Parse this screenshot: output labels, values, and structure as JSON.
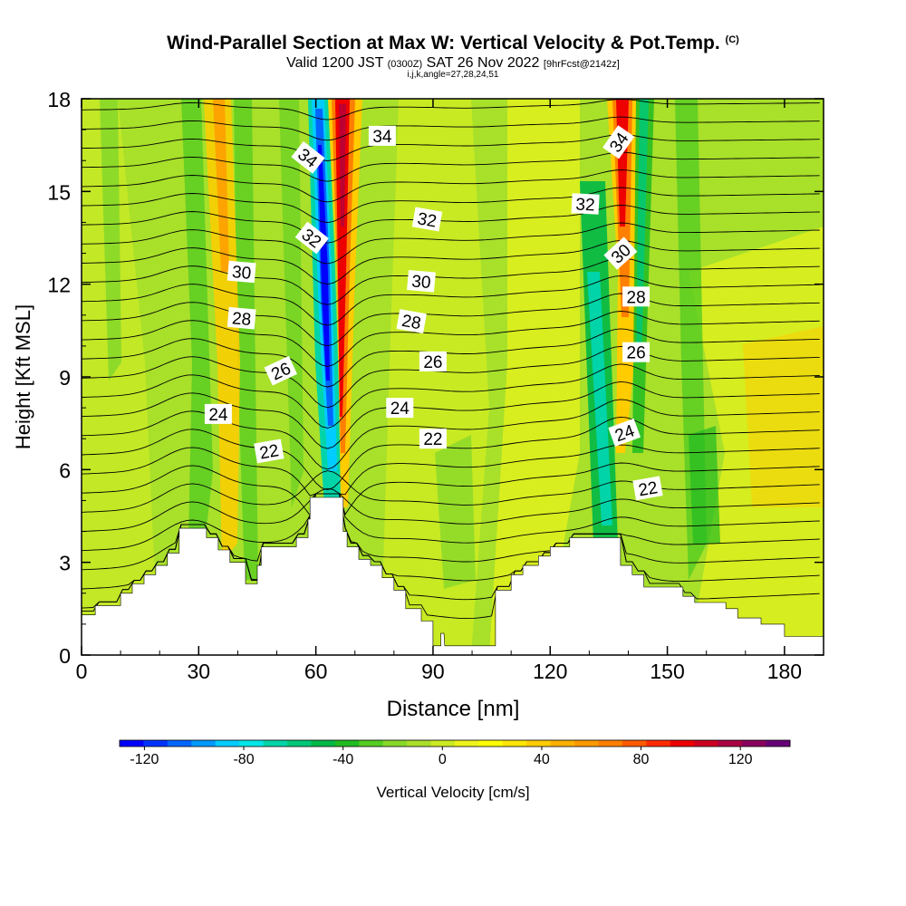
{
  "header": {
    "title_main": "Wind-Parallel Section at Max W: Vertical Velocity & Pot.Temp.",
    "title_mark": "(C)",
    "valid_prefix": "Valid 1200 JST",
    "valid_zulu": "(0300Z)",
    "valid_date": "SAT 26 Nov 2022",
    "fcst_info": "[9hrFcst@2142z]",
    "ijk_line": "i,j,k,angle=27,28,24,51"
  },
  "colors": {
    "contour_line": "#000000",
    "terrain_fill": "#ffffff",
    "background_field": "#a8e02a"
  },
  "chart_data": {
    "type": "heatmap",
    "xlabel": "Distance [nm]",
    "ylabel": "Height [Kft MSL]",
    "xlim": [
      0,
      190
    ],
    "ylim": [
      0,
      18
    ],
    "x_ticks": [
      "0",
      "30",
      "60",
      "90",
      "120",
      "150",
      "180"
    ],
    "y_ticks": [
      "0",
      "3",
      "6",
      "9",
      "12",
      "15",
      "18"
    ],
    "colorbar": {
      "label": "Vertical Velocity [cm/s]",
      "tick_labels": [
        "-120",
        "-80",
        "-40",
        "0",
        "40",
        "80",
        "120"
      ],
      "min": -130,
      "max": 140,
      "step": 10,
      "colors": [
        "#0000ff",
        "#0033ff",
        "#0066ff",
        "#0099ff",
        "#00ccff",
        "#00e6e6",
        "#00d4a8",
        "#00c878",
        "#00b846",
        "#22bb22",
        "#55cc22",
        "#88d82a",
        "#aae02a",
        "#ccea22",
        "#eef41a",
        "#ffff00",
        "#ffe600",
        "#ffcc00",
        "#ffb000",
        "#ff9900",
        "#ff8000",
        "#ff5a00",
        "#ff2a00",
        "#ee0000",
        "#cc0022",
        "#aa0044",
        "#88005e",
        "#660078"
      ]
    },
    "terrain_kft": [
      [
        0,
        1.3
      ],
      [
        3.5,
        1.3
      ],
      [
        3.5,
        1.6
      ],
      [
        10,
        1.6
      ],
      [
        10,
        2.0
      ],
      [
        13,
        2.0
      ],
      [
        13,
        2.3
      ],
      [
        16,
        2.3
      ],
      [
        16,
        2.6
      ],
      [
        19,
        2.6
      ],
      [
        19,
        2.9
      ],
      [
        22,
        2.9
      ],
      [
        22,
        3.3
      ],
      [
        25,
        3.3
      ],
      [
        25,
        4.1
      ],
      [
        32,
        4.1
      ],
      [
        32,
        3.8
      ],
      [
        35,
        3.8
      ],
      [
        35,
        3.4
      ],
      [
        38,
        3.4
      ],
      [
        38,
        3.0
      ],
      [
        42,
        3.0
      ],
      [
        42,
        2.3
      ],
      [
        45,
        2.3
      ],
      [
        45,
        2.9
      ],
      [
        46,
        2.9
      ],
      [
        46,
        3.5
      ],
      [
        55,
        3.5
      ],
      [
        55,
        3.8
      ],
      [
        58,
        3.8
      ],
      [
        58,
        4.4
      ],
      [
        58.5,
        4.4
      ],
      [
        58.5,
        5.1
      ],
      [
        67,
        5.1
      ],
      [
        67,
        4.0
      ],
      [
        68,
        4.0
      ],
      [
        68,
        3.5
      ],
      [
        71,
        3.5
      ],
      [
        71,
        3.1
      ],
      [
        74,
        3.1
      ],
      [
        74,
        2.9
      ],
      [
        77,
        2.9
      ],
      [
        77,
        2.5
      ],
      [
        80,
        2.5
      ],
      [
        80,
        2.1
      ],
      [
        83,
        2.1
      ],
      [
        83,
        1.5
      ],
      [
        87,
        1.5
      ],
      [
        87,
        1.1
      ],
      [
        90,
        1.1
      ],
      [
        90,
        0.3
      ],
      [
        92,
        0.3
      ],
      [
        92,
        0.7
      ],
      [
        92.8,
        0.7
      ],
      [
        93,
        0.3
      ],
      [
        100,
        0.3
      ],
      [
        106,
        0.3
      ],
      [
        106,
        2.1
      ],
      [
        110,
        2.1
      ],
      [
        110,
        2.6
      ],
      [
        113,
        2.6
      ],
      [
        113,
        2.9
      ],
      [
        117,
        2.9
      ],
      [
        117,
        3.2
      ],
      [
        120,
        3.2
      ],
      [
        120,
        3.5
      ],
      [
        125,
        3.5
      ],
      [
        125,
        3.8
      ],
      [
        138,
        3.8
      ],
      [
        138,
        2.9
      ],
      [
        141,
        2.9
      ],
      [
        141,
        2.6
      ],
      [
        144,
        2.6
      ],
      [
        144,
        2.2
      ],
      [
        154,
        2.2
      ],
      [
        154,
        1.9
      ],
      [
        157,
        1.9
      ],
      [
        157,
        1.7
      ],
      [
        165,
        1.7
      ],
      [
        165,
        1.5
      ],
      [
        168,
        1.5
      ],
      [
        168,
        1.2
      ],
      [
        174,
        1.2
      ],
      [
        174,
        1.0
      ],
      [
        180,
        1.0
      ],
      [
        180,
        0.6
      ],
      [
        190,
        0.6
      ]
    ],
    "theta_contour_labels": [
      {
        "x": 58,
        "y": 16.1,
        "text": "34",
        "angle": 38
      },
      {
        "x": 77,
        "y": 16.8,
        "text": "34",
        "angle": 0
      },
      {
        "x": 137.5,
        "y": 16.6,
        "text": "34",
        "angle": -55
      },
      {
        "x": 59,
        "y": 13.5,
        "text": "32",
        "angle": 38
      },
      {
        "x": 88.5,
        "y": 14.1,
        "text": "32",
        "angle": 10
      },
      {
        "x": 129,
        "y": 14.6,
        "text": "32",
        "angle": 3
      },
      {
        "x": 41,
        "y": 12.4,
        "text": "30",
        "angle": 5
      },
      {
        "x": 87,
        "y": 12.1,
        "text": "30",
        "angle": 5
      },
      {
        "x": 138,
        "y": 13.0,
        "text": "30",
        "angle": -42
      },
      {
        "x": 41,
        "y": 10.9,
        "text": "28",
        "angle": 5
      },
      {
        "x": 84.5,
        "y": 10.8,
        "text": "28",
        "angle": 10
      },
      {
        "x": 142,
        "y": 11.6,
        "text": "28",
        "angle": 0
      },
      {
        "x": 51,
        "y": 9.2,
        "text": "26",
        "angle": -25
      },
      {
        "x": 90,
        "y": 9.5,
        "text": "26",
        "angle": 0
      },
      {
        "x": 142,
        "y": 9.8,
        "text": "26",
        "angle": 0
      },
      {
        "x": 35,
        "y": 7.8,
        "text": "24",
        "angle": 0
      },
      {
        "x": 81.5,
        "y": 8.0,
        "text": "24",
        "angle": 0
      },
      {
        "x": 139,
        "y": 7.2,
        "text": "24",
        "angle": -20
      },
      {
        "x": 48,
        "y": 6.6,
        "text": "22",
        "angle": -10
      },
      {
        "x": 90,
        "y": 7.0,
        "text": "22",
        "angle": 0
      },
      {
        "x": 145,
        "y": 5.4,
        "text": "22",
        "angle": -10
      }
    ]
  }
}
